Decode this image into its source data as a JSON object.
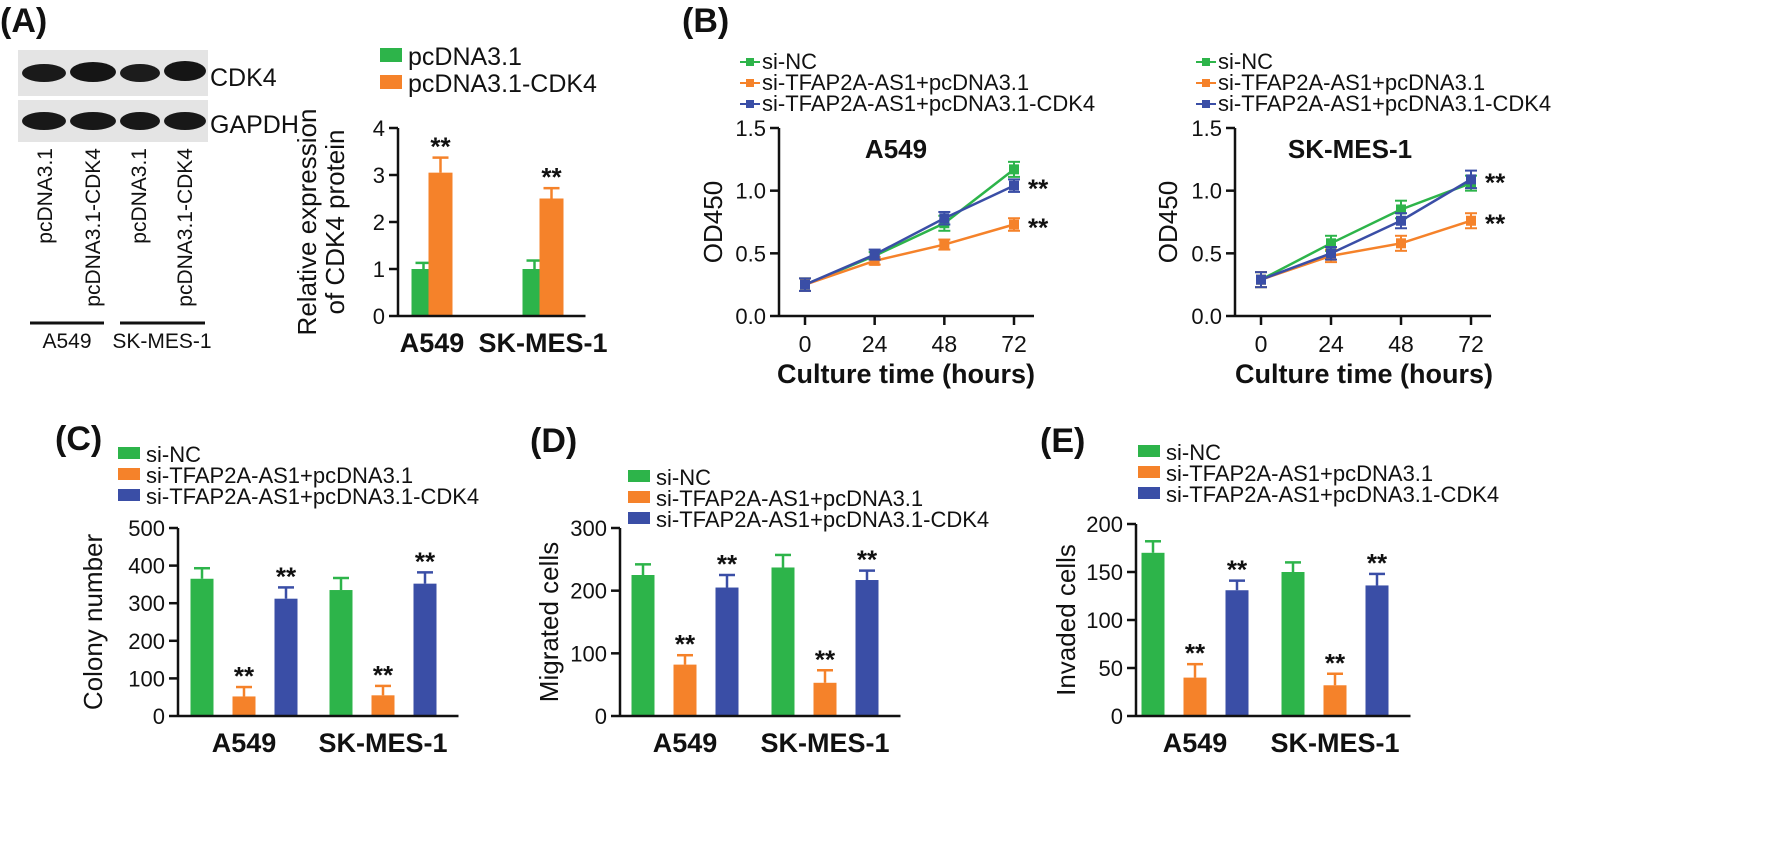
{
  "colors": {
    "green": "#2DB44A",
    "orange": "#F5822A",
    "blue": "#3A4EA6",
    "axis": "#111111"
  },
  "panelA": {
    "label": "(A)",
    "blot": {
      "bands": [
        "CDK4",
        "GAPDH"
      ],
      "lanes": [
        "pcDNA3.1",
        "pcDNA3.1-CDK4",
        "pcDNA3.1",
        "pcDNA3.1-CDK4"
      ],
      "groups": [
        "A549",
        "SK-MES-1"
      ]
    }
  },
  "panelB": {
    "label": "(B)"
  },
  "panelC": {
    "label": "(C)"
  },
  "panelD": {
    "label": "(D)"
  },
  "panelE": {
    "label": "(E)"
  },
  "chart_data": [
    {
      "id": "A-bar",
      "type": "bar",
      "title": "",
      "ylabel": [
        "Relative expression",
        "of CDK4 protein"
      ],
      "categories": [
        "A549",
        "SK-MES-1"
      ],
      "ylim": [
        0,
        4
      ],
      "yticks": [
        0,
        1,
        2,
        3,
        4
      ],
      "series": [
        {
          "name": "pcDNA3.1",
          "color": "#2DB44A",
          "values": [
            1.0,
            1.0
          ],
          "errors": [
            0.13,
            0.18
          ],
          "sig": [
            "",
            ""
          ]
        },
        {
          "name": "pcDNA3.1-CDK4",
          "color": "#F5822A",
          "values": [
            3.05,
            2.5
          ],
          "errors": [
            0.32,
            0.22
          ],
          "sig": [
            "**",
            "**"
          ]
        }
      ]
    },
    {
      "id": "B1-line",
      "type": "line",
      "title": "A549",
      "xlabel": "Culture time (hours)",
      "ylabel": "OD450",
      "x": [
        0,
        24,
        48,
        72
      ],
      "ylim": [
        0,
        1.5
      ],
      "yticks": [
        "0.0",
        "0.5",
        "1.0",
        "1.5"
      ],
      "series": [
        {
          "name": "si-NC",
          "color": "#2DB44A",
          "values": [
            0.25,
            0.48,
            0.74,
            1.17
          ],
          "errors": [
            0.05,
            0.03,
            0.06,
            0.06
          ],
          "sig": ""
        },
        {
          "name": "si-TFAP2A-AS1+pcDNA3.1",
          "color": "#F5822A",
          "values": [
            0.25,
            0.44,
            0.57,
            0.73
          ],
          "errors": [
            0.05,
            0.03,
            0.04,
            0.05
          ],
          "sig": "**"
        },
        {
          "name": "si-TFAP2A-AS1+pcDNA3.1-CDK4",
          "color": "#3A4EA6",
          "values": [
            0.25,
            0.49,
            0.78,
            1.04
          ],
          "errors": [
            0.05,
            0.04,
            0.05,
            0.05
          ],
          "sig": "**"
        }
      ]
    },
    {
      "id": "B2-line",
      "type": "line",
      "title": "SK-MES-1",
      "xlabel": "Culture time (hours)",
      "ylabel": "OD450",
      "x": [
        0,
        24,
        48,
        72
      ],
      "ylim": [
        0,
        1.5
      ],
      "yticks": [
        "0.0",
        "0.5",
        "1.0",
        "1.5"
      ],
      "series": [
        {
          "name": "si-NC",
          "color": "#2DB44A",
          "values": [
            0.29,
            0.58,
            0.85,
            1.06
          ],
          "errors": [
            0.06,
            0.06,
            0.07,
            0.06
          ],
          "sig": ""
        },
        {
          "name": "si-TFAP2A-AS1+pcDNA3.1",
          "color": "#F5822A",
          "values": [
            0.29,
            0.48,
            0.58,
            0.76
          ],
          "errors": [
            0.06,
            0.05,
            0.06,
            0.06
          ],
          "sig": "**"
        },
        {
          "name": "si-TFAP2A-AS1+pcDNA3.1-CDK4",
          "color": "#3A4EA6",
          "values": [
            0.29,
            0.5,
            0.76,
            1.09
          ],
          "errors": [
            0.06,
            0.05,
            0.06,
            0.07
          ],
          "sig": "**"
        }
      ]
    },
    {
      "id": "C-bar",
      "type": "bar",
      "title": "",
      "ylabel": [
        "Colony number"
      ],
      "categories": [
        "A549",
        "SK-MES-1"
      ],
      "ylim": [
        0,
        500
      ],
      "yticks": [
        0,
        100,
        200,
        300,
        400,
        500
      ],
      "series": [
        {
          "name": "si-NC",
          "color": "#2DB44A",
          "values": [
            365,
            335
          ],
          "errors": [
            28,
            32
          ],
          "sig": [
            "",
            ""
          ]
        },
        {
          "name": "si-TFAP2A-AS1+pcDNA3.1",
          "color": "#F5822A",
          "values": [
            52,
            55
          ],
          "errors": [
            25,
            25
          ],
          "sig": [
            "**",
            "**"
          ]
        },
        {
          "name": "si-TFAP2A-AS1+pcDNA3.1-CDK4",
          "color": "#3A4EA6",
          "values": [
            312,
            352
          ],
          "errors": [
            30,
            30
          ],
          "sig": [
            "**",
            "**"
          ]
        }
      ]
    },
    {
      "id": "D-bar",
      "type": "bar",
      "title": "",
      "ylabel": [
        "Migrated cells"
      ],
      "categories": [
        "A549",
        "SK-MES-1"
      ],
      "ylim": [
        0,
        300
      ],
      "yticks": [
        0,
        100,
        200,
        300
      ],
      "series": [
        {
          "name": "si-NC",
          "color": "#2DB44A",
          "values": [
            225,
            237
          ],
          "errors": [
            17,
            20
          ],
          "sig": [
            "",
            ""
          ]
        },
        {
          "name": "si-TFAP2A-AS1+pcDNA3.1",
          "color": "#F5822A",
          "values": [
            82,
            53
          ],
          "errors": [
            15,
            20
          ],
          "sig": [
            "**",
            "**"
          ]
        },
        {
          "name": "si-TFAP2A-AS1+pcDNA3.1-CDK4",
          "color": "#3A4EA6",
          "values": [
            205,
            217
          ],
          "errors": [
            20,
            15
          ],
          "sig": [
            "**",
            "**"
          ]
        }
      ]
    },
    {
      "id": "E-bar",
      "type": "bar",
      "title": "",
      "ylabel": [
        "Invaded cells"
      ],
      "categories": [
        "A549",
        "SK-MES-1"
      ],
      "ylim": [
        0,
        200
      ],
      "yticks": [
        0,
        50,
        100,
        150,
        200
      ],
      "series": [
        {
          "name": "si-NC",
          "color": "#2DB44A",
          "values": [
            170,
            150
          ],
          "errors": [
            12,
            10
          ],
          "sig": [
            "",
            ""
          ]
        },
        {
          "name": "si-TFAP2A-AS1+pcDNA3.1",
          "color": "#F5822A",
          "values": [
            40,
            32
          ],
          "errors": [
            14,
            12
          ],
          "sig": [
            "**",
            "**"
          ]
        },
        {
          "name": "si-TFAP2A-AS1+pcDNA3.1-CDK4",
          "color": "#3A4EA6",
          "values": [
            131,
            136
          ],
          "errors": [
            10,
            12
          ],
          "sig": [
            "**",
            "**"
          ]
        }
      ]
    }
  ]
}
